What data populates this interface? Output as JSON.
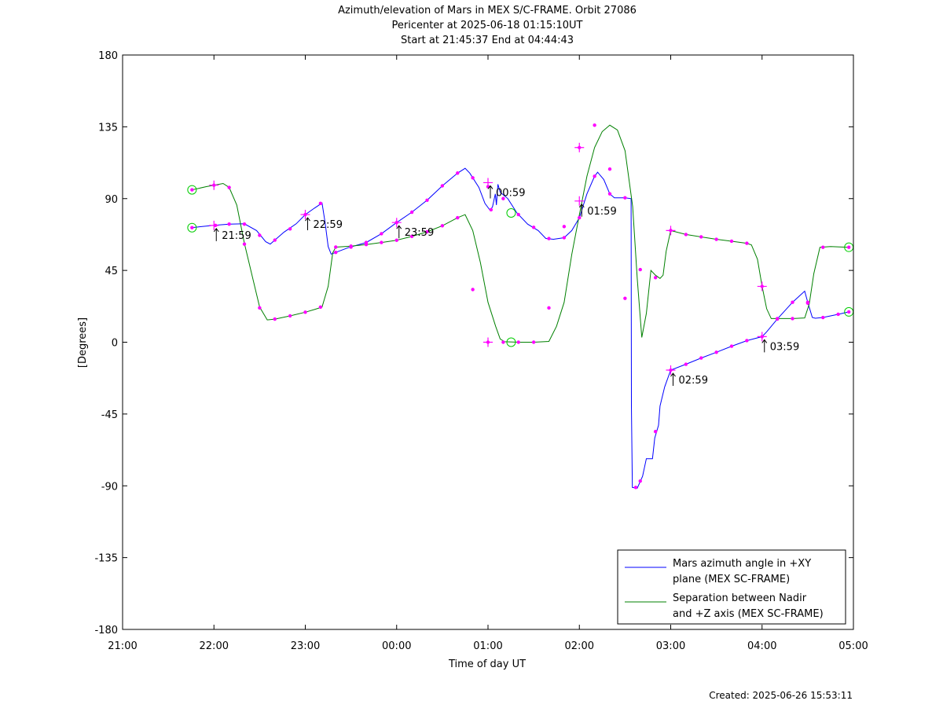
{
  "chart_data": {
    "type": "line",
    "title_lines": [
      "Azimuth/elevation of Mars in MEX S/C-FRAME.  Orbit 27086",
      "Pericenter at 2025-06-18 01:15:10UT",
      "Start at 21:45:37 End at 04:44:43"
    ],
    "xlabel": "Time of day UT",
    "ylabel": "[Degrees]",
    "created": "Created: 2025-06-26 15:53:11",
    "x_unit": "minutes after 21:00 UT",
    "xlim": [
      0,
      480
    ],
    "ylim": [
      -180,
      180
    ],
    "x_ticks": [
      {
        "v": 0,
        "label": "21:00"
      },
      {
        "v": 60,
        "label": "22:00"
      },
      {
        "v": 120,
        "label": "23:00"
      },
      {
        "v": 180,
        "label": "00:00"
      },
      {
        "v": 240,
        "label": "01:00"
      },
      {
        "v": 300,
        "label": "02:00"
      },
      {
        "v": 360,
        "label": "03:00"
      },
      {
        "v": 420,
        "label": "04:00"
      },
      {
        "v": 480,
        "label": "05:00"
      }
    ],
    "y_ticks": [
      {
        "v": 180,
        "label": "180"
      },
      {
        "v": 135,
        "label": "135"
      },
      {
        "v": 90,
        "label": "90"
      },
      {
        "v": 45,
        "label": "45"
      },
      {
        "v": 0,
        "label": "0"
      },
      {
        "v": -45,
        "label": "-45"
      },
      {
        "v": -90,
        "label": "-90"
      },
      {
        "v": -135,
        "label": "-135"
      },
      {
        "v": -180,
        "label": "-180"
      }
    ],
    "legend_position": "bottom-right",
    "series": [
      {
        "name_lines": [
          "Mars azimuth angle in +XY",
          "plane (MEX SC-FRAME)"
        ],
        "color": "#0000ff",
        "points": [
          [
            45.6,
            71.8
          ],
          [
            51,
            72.4
          ],
          [
            60,
            73.3
          ],
          [
            70,
            74
          ],
          [
            80,
            74.2
          ],
          [
            88,
            70
          ],
          [
            94,
            63
          ],
          [
            97,
            61.5
          ],
          [
            100,
            64
          ],
          [
            106,
            69
          ],
          [
            114,
            74.2
          ],
          [
            120,
            80
          ],
          [
            126,
            84
          ],
          [
            131,
            87.2
          ],
          [
            133,
            75
          ],
          [
            135,
            60
          ],
          [
            137,
            55.2
          ],
          [
            140,
            56.3
          ],
          [
            148,
            59.2
          ],
          [
            160,
            62.5
          ],
          [
            170,
            68
          ],
          [
            180,
            75
          ],
          [
            190,
            81.5
          ],
          [
            200,
            89
          ],
          [
            210,
            98
          ],
          [
            220,
            106
          ],
          [
            225,
            109
          ],
          [
            228,
            106
          ],
          [
            234,
            97
          ],
          [
            238,
            87
          ],
          [
            241.5,
            82.5
          ],
          [
            243,
            85
          ],
          [
            244.8,
            93
          ],
          [
            245.5,
            86
          ],
          [
            246.5,
            99
          ],
          [
            248,
            94
          ],
          [
            253,
            90
          ],
          [
            259,
            81
          ],
          [
            266,
            74
          ],
          [
            273,
            70
          ],
          [
            278,
            65
          ],
          [
            283,
            64.5
          ],
          [
            290,
            65.5
          ],
          [
            295,
            70
          ],
          [
            300,
            78
          ],
          [
            305,
            93
          ],
          [
            310,
            104
          ],
          [
            312,
            106.5
          ],
          [
            316,
            102
          ],
          [
            320,
            93
          ],
          [
            323,
            90.5
          ],
          [
            330,
            90.5
          ],
          [
            334,
            90
          ],
          [
            334.2,
            -40
          ],
          [
            334.8,
            -91
          ],
          [
            338,
            -91.5
          ],
          [
            341.5,
            -84
          ],
          [
            344,
            -73
          ],
          [
            348,
            -73
          ],
          [
            349.5,
            -60
          ],
          [
            352,
            -52
          ],
          [
            353,
            -40
          ],
          [
            356,
            -28
          ],
          [
            360,
            -17.5
          ],
          [
            370,
            -13.8
          ],
          [
            380,
            -9.9
          ],
          [
            390,
            -6.3
          ],
          [
            400,
            -2.5
          ],
          [
            410,
            1
          ],
          [
            420,
            3.5
          ],
          [
            423,
            6.5
          ],
          [
            430,
            14.5
          ],
          [
            440,
            25
          ],
          [
            448,
            32
          ],
          [
            450,
            25
          ],
          [
            453,
            15.5
          ],
          [
            455,
            15
          ],
          [
            460,
            15.5
          ],
          [
            470,
            17.5
          ],
          [
            477,
            19
          ]
        ],
        "markers": [
          [
            45.6,
            71.8
          ],
          [
            61,
            73.2
          ],
          [
            70,
            74
          ],
          [
            80,
            74
          ],
          [
            90,
            67
          ],
          [
            100,
            64
          ],
          [
            110,
            71
          ],
          [
            120,
            80
          ],
          [
            130,
            87
          ],
          [
            140,
            56.3
          ],
          [
            150,
            59.6
          ],
          [
            160,
            62.5
          ],
          [
            170,
            68
          ],
          [
            180,
            75
          ],
          [
            190,
            81.5
          ],
          [
            200,
            89
          ],
          [
            210,
            98
          ],
          [
            220,
            106
          ],
          [
            230,
            103
          ],
          [
            240,
            97.5
          ],
          [
            242,
            83
          ],
          [
            250,
            90
          ],
          [
            260,
            80
          ],
          [
            270,
            72
          ],
          [
            280,
            65
          ],
          [
            290,
            65.5
          ],
          [
            300,
            78
          ],
          [
            310,
            104
          ],
          [
            320,
            93
          ],
          [
            330,
            90.5
          ],
          [
            337,
            -91
          ],
          [
            340,
            -87
          ],
          [
            350,
            -56
          ],
          [
            360,
            -17.5
          ],
          [
            370,
            -13.8
          ],
          [
            380,
            -9.9
          ],
          [
            390,
            -6.3
          ],
          [
            400,
            -2.5
          ],
          [
            410,
            1
          ],
          [
            420,
            3.5
          ],
          [
            430,
            14.5
          ],
          [
            440,
            25
          ],
          [
            450,
            25
          ],
          [
            460,
            15.5
          ],
          [
            470,
            17.5
          ],
          [
            477,
            19
          ]
        ],
        "crosses": [
          [
            60,
            73.2
          ],
          [
            120,
            80
          ],
          [
            180,
            75
          ],
          [
            240,
            100
          ],
          [
            300,
            88.5
          ],
          [
            360,
            -17.5
          ],
          [
            420,
            3.5
          ]
        ],
        "circles": [
          [
            45.6,
            71.8
          ],
          [
            255.2,
            81
          ],
          [
            477,
            19
          ]
        ]
      },
      {
        "name_lines": [
          "Separation between Nadir",
          "and +Z axis (MEX SC-FRAME)"
        ],
        "color": "#008000",
        "points": [
          [
            45.6,
            95.5
          ],
          [
            55,
            97.5
          ],
          [
            60,
            98.4
          ],
          [
            66,
            99.5
          ],
          [
            70,
            97
          ],
          [
            75,
            86
          ],
          [
            80,
            62
          ],
          [
            86,
            38
          ],
          [
            90,
            22
          ],
          [
            95,
            14
          ],
          [
            100,
            14.5
          ],
          [
            110,
            16.5
          ],
          [
            120,
            18.8
          ],
          [
            126,
            20.5
          ],
          [
            131,
            22
          ],
          [
            135,
            35
          ],
          [
            138,
            56
          ],
          [
            140,
            59.6
          ],
          [
            150,
            60.2
          ],
          [
            160,
            61.2
          ],
          [
            170,
            62.5
          ],
          [
            180,
            63.9
          ],
          [
            190,
            66.3
          ],
          [
            200,
            69.2
          ],
          [
            210,
            73
          ],
          [
            220,
            78
          ],
          [
            225,
            80
          ],
          [
            230,
            70
          ],
          [
            235,
            50
          ],
          [
            240,
            25
          ],
          [
            245,
            10
          ],
          [
            248,
            2
          ],
          [
            251,
            0.3
          ],
          [
            260,
            0
          ],
          [
            270,
            0
          ],
          [
            280,
            0.5
          ],
          [
            285,
            10
          ],
          [
            290,
            25
          ],
          [
            295,
            55
          ],
          [
            300,
            80
          ],
          [
            305,
            104
          ],
          [
            310,
            122
          ],
          [
            315,
            132
          ],
          [
            320,
            136
          ],
          [
            325,
            133
          ],
          [
            330,
            120
          ],
          [
            335,
            85
          ],
          [
            338,
            40
          ],
          [
            341,
            3
          ],
          [
            344,
            18
          ],
          [
            347,
            45
          ],
          [
            350,
            42
          ],
          [
            353,
            40
          ],
          [
            355,
            42
          ],
          [
            357,
            57
          ],
          [
            360,
            70
          ],
          [
            370,
            67.5
          ],
          [
            380,
            66
          ],
          [
            390,
            64.5
          ],
          [
            400,
            63.3
          ],
          [
            410,
            62
          ],
          [
            413,
            61
          ],
          [
            417,
            52
          ],
          [
            420,
            35
          ],
          [
            423,
            21
          ],
          [
            426,
            14.8
          ],
          [
            435,
            14.8
          ],
          [
            440,
            14.8
          ],
          [
            448,
            15.2
          ],
          [
            451,
            24
          ],
          [
            454,
            43
          ],
          [
            458,
            59.5
          ],
          [
            465,
            60
          ],
          [
            477,
            59.5
          ]
        ],
        "markers": [
          [
            45.6,
            95.5
          ],
          [
            60,
            98.4
          ],
          [
            70,
            97
          ],
          [
            80,
            61.5
          ],
          [
            90,
            21.5
          ],
          [
            100,
            14.5
          ],
          [
            110,
            16.5
          ],
          [
            120,
            18.8
          ],
          [
            130,
            22
          ],
          [
            140,
            59.6
          ],
          [
            150,
            60.2
          ],
          [
            160,
            61.2
          ],
          [
            170,
            62.5
          ],
          [
            180,
            63.9
          ],
          [
            190,
            66.3
          ],
          [
            200,
            69.2
          ],
          [
            210,
            73
          ],
          [
            220,
            78
          ],
          [
            230,
            33
          ],
          [
            240,
            0
          ],
          [
            250,
            0
          ],
          [
            260,
            0
          ],
          [
            270,
            0
          ],
          [
            280,
            21.5
          ],
          [
            290,
            72.5
          ],
          [
            300,
            122
          ],
          [
            310,
            136
          ],
          [
            320,
            108.5
          ],
          [
            330,
            27.5
          ],
          [
            340,
            45.5
          ],
          [
            350,
            40.5
          ],
          [
            360,
            70
          ],
          [
            370,
            67.5
          ],
          [
            380,
            66
          ],
          [
            390,
            64.5
          ],
          [
            400,
            63.3
          ],
          [
            410,
            62
          ],
          [
            420,
            35
          ],
          [
            430,
            14.8
          ],
          [
            440,
            14.8
          ],
          [
            450,
            24.5
          ],
          [
            460,
            59.5
          ],
          [
            477,
            59.5
          ]
        ],
        "crosses": [
          [
            60,
            98.4
          ],
          [
            240,
            0
          ],
          [
            300,
            122
          ],
          [
            360,
            70
          ],
          [
            420,
            35
          ]
        ],
        "circles": [
          [
            45.6,
            95.5
          ],
          [
            255.2,
            0
          ],
          [
            477,
            59.5
          ]
        ]
      }
    ],
    "annotations": [
      {
        "label": "21:59",
        "x": 60,
        "y": 73.2
      },
      {
        "label": "22:59",
        "x": 120,
        "y": 80
      },
      {
        "label": "23:59",
        "x": 180,
        "y": 75
      },
      {
        "label": "00:59",
        "x": 240,
        "y": 100
      },
      {
        "label": "01:59",
        "x": 300,
        "y": 88.5
      },
      {
        "label": "02:59",
        "x": 360,
        "y": -17.5
      },
      {
        "label": "03:59",
        "x": 420,
        "y": 3.5
      }
    ]
  }
}
